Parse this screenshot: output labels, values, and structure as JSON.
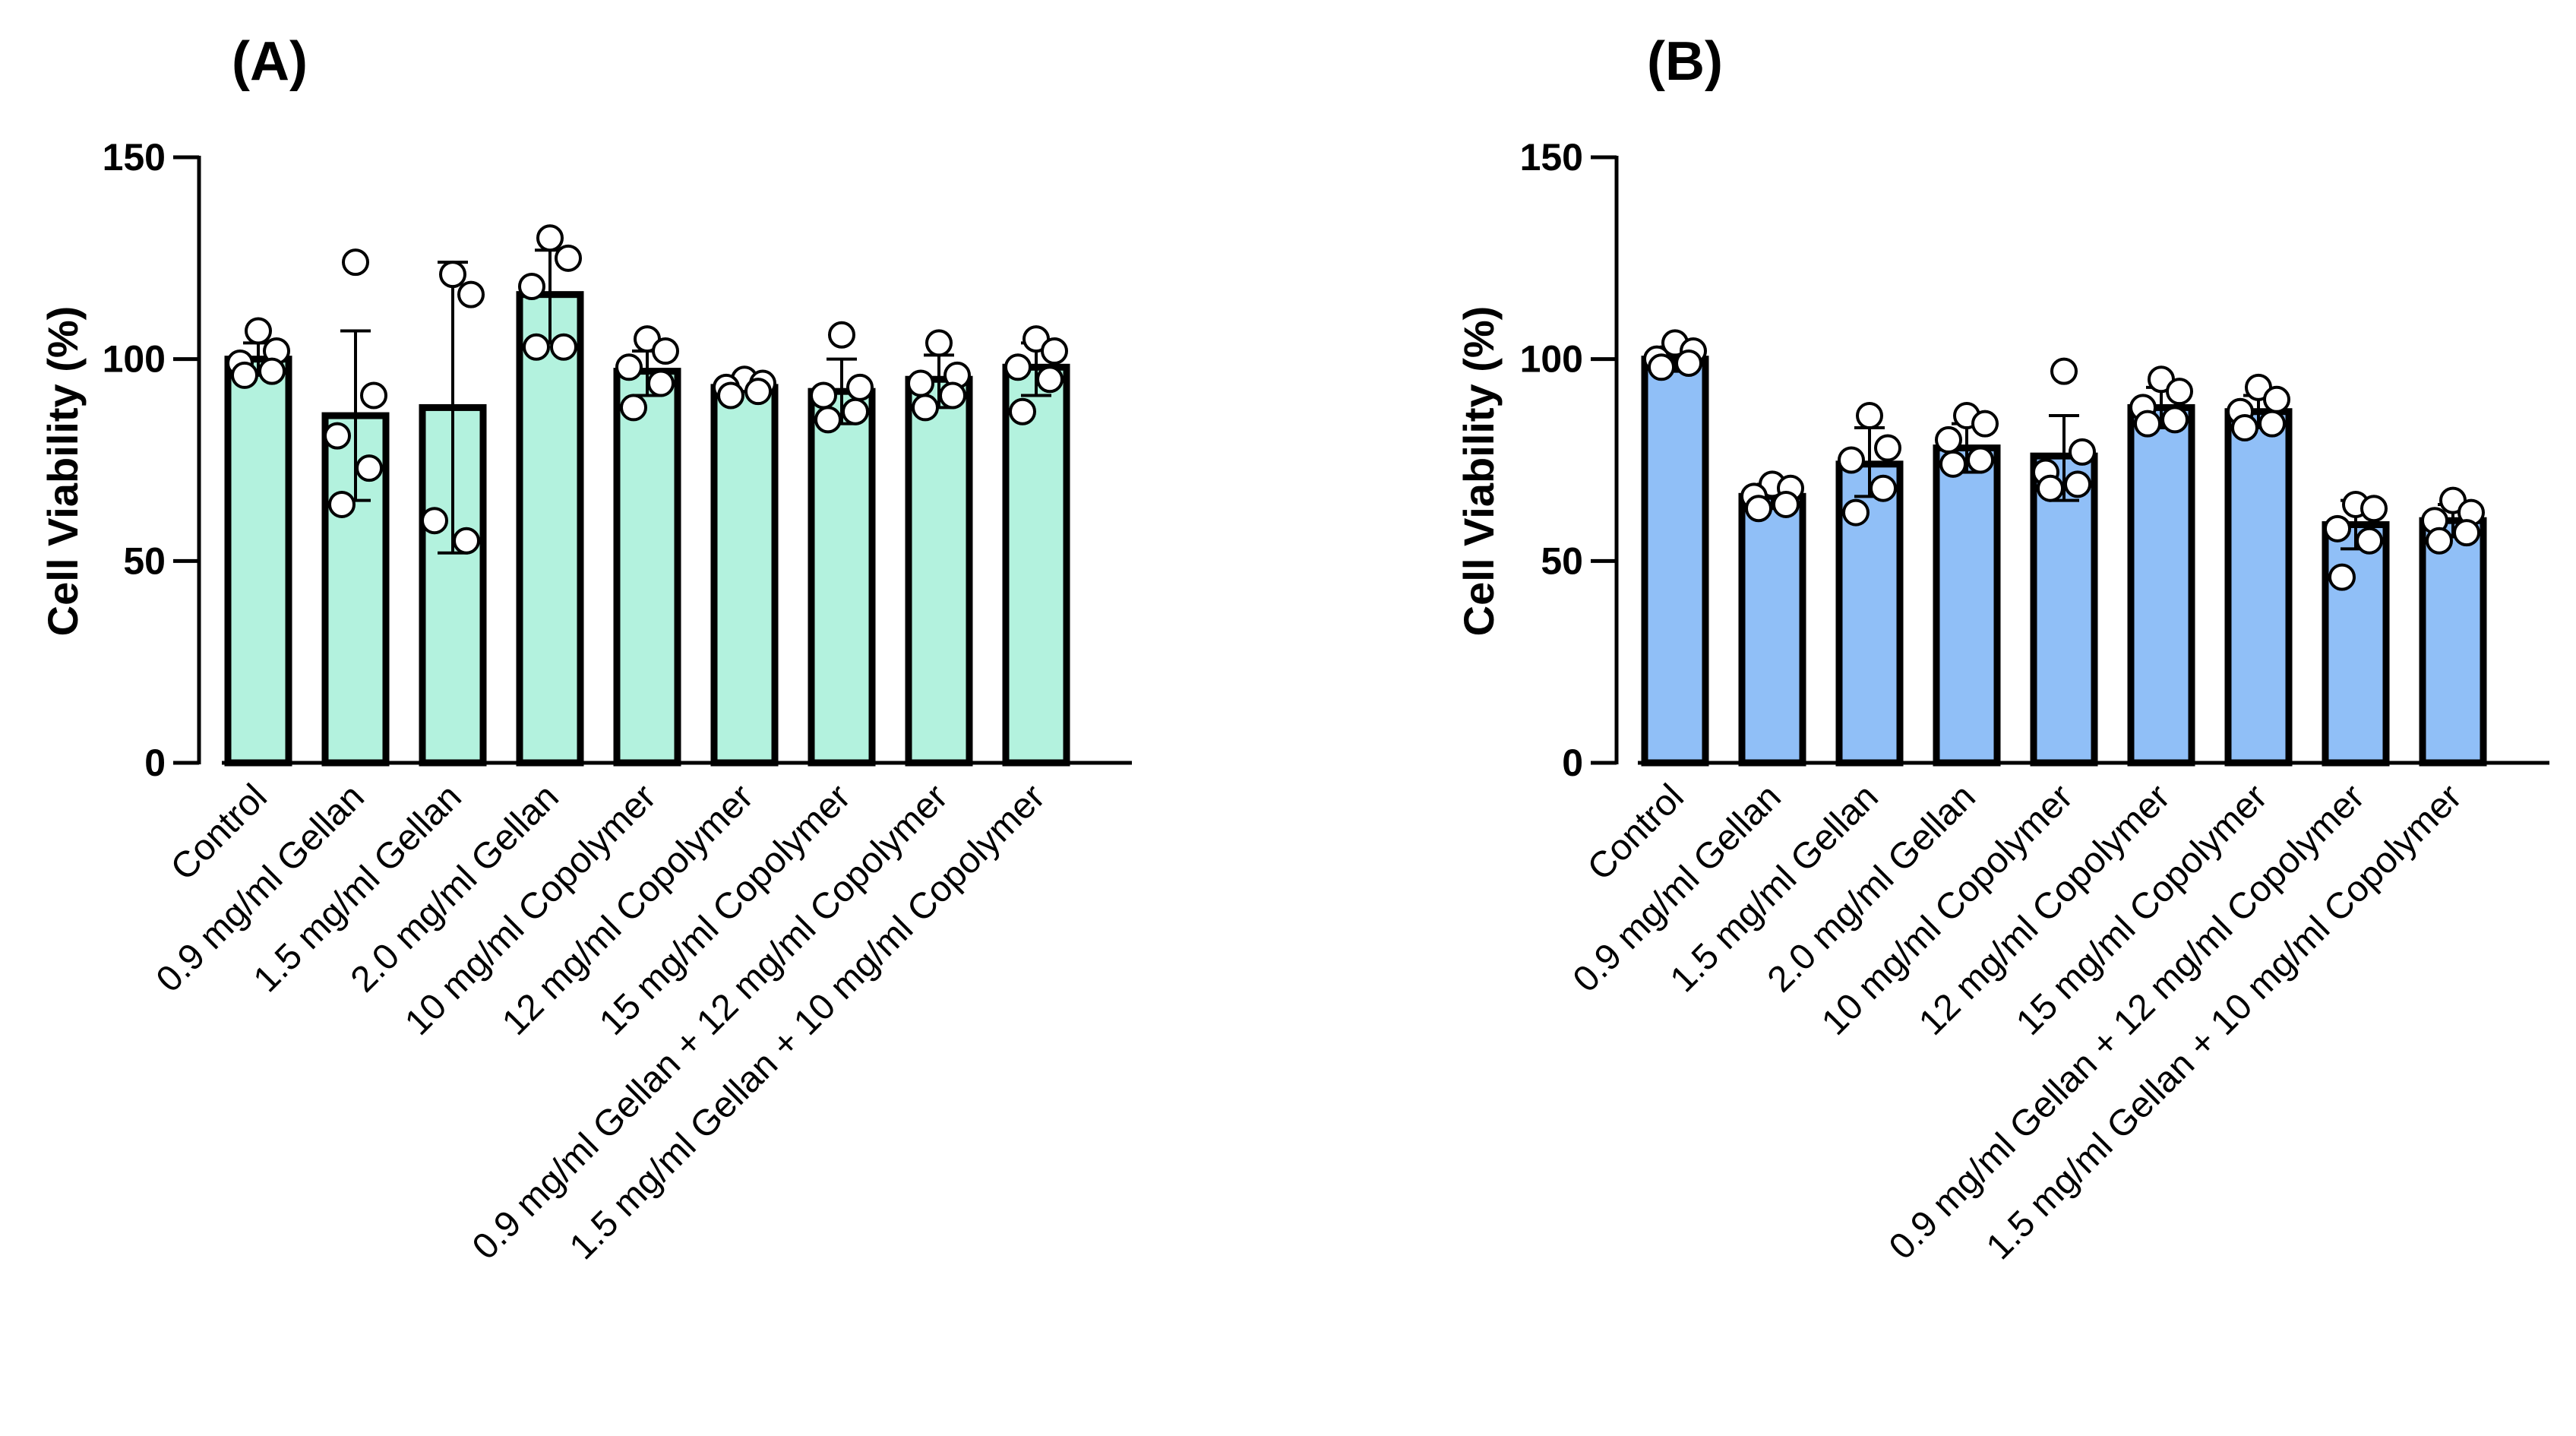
{
  "chart_data": [
    {
      "type": "bar",
      "panel_label": "(A)",
      "ylabel": "Cell Viability (%)",
      "xlabel": "",
      "ylim": [
        0,
        150
      ],
      "yticks": [
        0,
        50,
        100,
        150
      ],
      "bar_color": "#b3f2de",
      "categories": [
        "Control",
        "0.9 mg/ml Gellan",
        "1.5 mg/ml Gellan",
        "2.0 mg/ml Gellan",
        "10 mg/ml Copolymer",
        "12 mg/ml Copolymer",
        "15 mg/ml Copolymer",
        "0.9 mg/ml Gellan + 12 mg/ml Copolymer",
        "1.5 mg/ml Gellan + 10 mg/ml Copolymer"
      ],
      "values": [
        100,
        86,
        88,
        116,
        97,
        93,
        92,
        95,
        98
      ],
      "error": [
        [
          96,
          104
        ],
        [
          65,
          107
        ],
        [
          52,
          124
        ],
        [
          104,
          127
        ],
        [
          91,
          102
        ],
        [
          92,
          95
        ],
        [
          84,
          100
        ],
        [
          88,
          101
        ],
        [
          91,
          104
        ]
      ],
      "points": [
        [
          107,
          102,
          99,
          97,
          96
        ],
        [
          124,
          91,
          81,
          73,
          64
        ],
        [
          121,
          116,
          60,
          55
        ],
        [
          130,
          125,
          118,
          103,
          103
        ],
        [
          105,
          102,
          98,
          94,
          88
        ],
        [
          95,
          94,
          93,
          92,
          91
        ],
        [
          106,
          93,
          91,
          87,
          85
        ],
        [
          104,
          96,
          94,
          91,
          88
        ],
        [
          105,
          102,
          98,
          95,
          87
        ]
      ]
    },
    {
      "type": "bar",
      "panel_label": "(B)",
      "ylabel": "Cell Viability (%)",
      "xlabel": "",
      "ylim": [
        0,
        150
      ],
      "yticks": [
        0,
        50,
        100,
        150
      ],
      "bar_color": "#90bff7",
      "categories": [
        "Control",
        "0.9 mg/ml Gellan",
        "1.5 mg/ml Gellan",
        "2.0 mg/ml Gellan",
        "10 mg/ml Copolymer",
        "12 mg/ml Copolymer",
        "15 mg/ml Copolymer",
        "0.9 mg/ml Gellan + 12 mg/ml Copolymer",
        "1.5 mg/ml Gellan + 10 mg/ml Copolymer"
      ],
      "values": [
        100,
        66,
        74,
        78,
        76,
        88,
        87,
        59,
        60
      ],
      "error": [
        [
          97,
          103
        ],
        [
          63,
          69
        ],
        [
          66,
          83
        ],
        [
          72,
          84
        ],
        [
          65,
          86
        ],
        [
          83,
          93
        ],
        [
          83,
          91
        ],
        [
          53,
          65
        ],
        [
          56,
          64
        ]
      ],
      "points": [
        [
          104,
          102,
          100,
          99,
          98
        ],
        [
          69,
          68,
          66,
          64,
          63
        ],
        [
          86,
          78,
          75,
          68,
          62
        ],
        [
          86,
          84,
          80,
          75,
          74
        ],
        [
          97,
          77,
          72,
          69,
          68
        ],
        [
          95,
          92,
          88,
          85,
          84
        ],
        [
          93,
          90,
          87,
          84,
          83
        ],
        [
          64,
          63,
          58,
          55,
          46
        ],
        [
          65,
          62,
          60,
          57,
          55
        ]
      ]
    }
  ]
}
